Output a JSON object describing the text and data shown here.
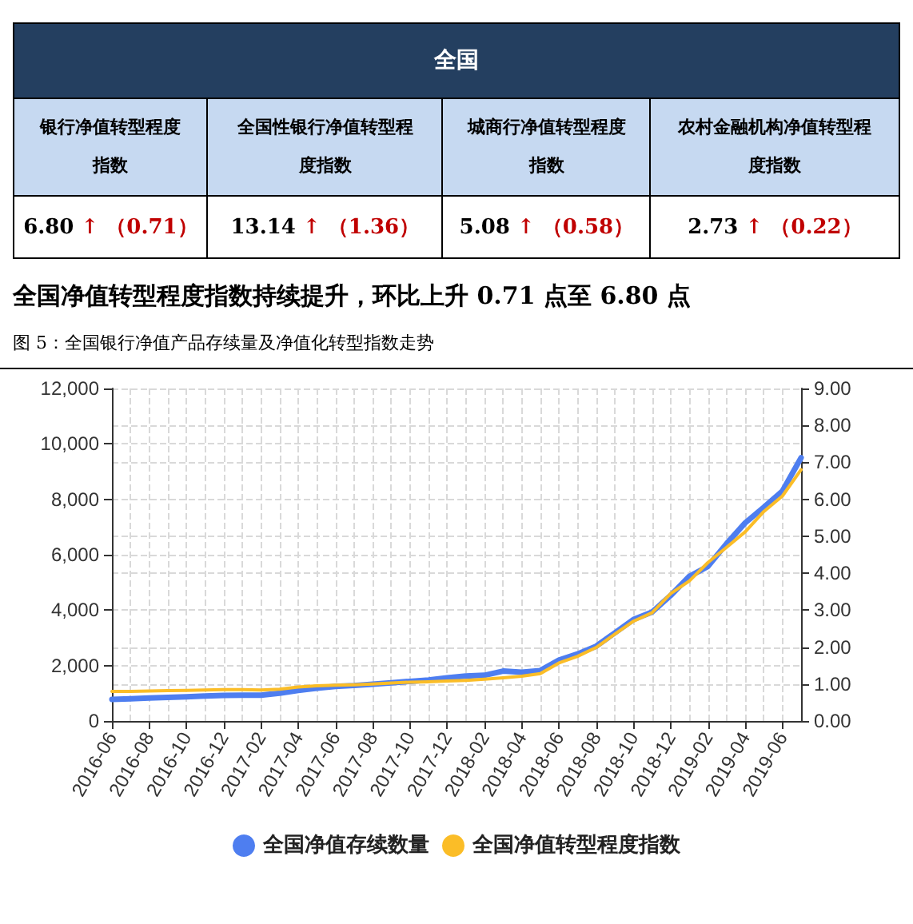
{
  "chart_data": [
    {
      "type": "other",
      "title": "全国",
      "annotations": [
        "银行净值转型程度指数",
        "全国性银行净值转型程度指数",
        "城商行净值转型程度指数",
        "农村金融机构净值转型程度指数",
        "6.80 ↑ （0.71）",
        "13.14 ↑ （1.36）",
        "5.08 ↑ （0.58）",
        "2.73 ↑ （0.22）"
      ]
    },
    {
      "type": "line",
      "title": "全国净值转型程度指数持续提升，环比上升 0.71 点至 6.80 点",
      "subtitle": "图 5：全国银行净值产品存续量及净值化转型指数走势",
      "categories": [
        "2016-06",
        null,
        "2016-08",
        null,
        "2016-10",
        null,
        "2016-12",
        null,
        "2017-02",
        null,
        "2017-04",
        null,
        "2017-06",
        null,
        "2017-08",
        null,
        "2017-10",
        null,
        "2017-12",
        null,
        "2018-02",
        null,
        "2018-04",
        null,
        "2018-06",
        null,
        "2018-08",
        null,
        "2018-10",
        null,
        "2018-12",
        null,
        "2019-02",
        null,
        "2019-04",
        null,
        "2019-06",
        null
      ],
      "series": [
        {
          "name": "全国净值存续数量",
          "color": "#4e7ef0",
          "values": [
            780,
            800,
            830,
            850,
            870,
            900,
            920,
            930,
            930,
            1000,
            1100,
            1180,
            1250,
            1280,
            1330,
            1380,
            1430,
            1480,
            1560,
            1620,
            1650,
            1800,
            1760,
            1820,
            2200,
            2420,
            2700,
            3180,
            3660,
            3930,
            4530,
            5220,
            5580,
            6400,
            7150,
            7710,
            8300,
            9500
          ]
        },
        {
          "name": "全国净值转型程度指数",
          "color": "#fbbd27",
          "axis": "y2",
          "values": [
            0.8,
            0.8,
            0.81,
            0.82,
            0.83,
            0.84,
            0.85,
            0.85,
            0.84,
            0.86,
            0.92,
            0.95,
            0.97,
            0.98,
            1.0,
            1.03,
            1.05,
            1.06,
            1.08,
            1.1,
            1.13,
            1.17,
            1.21,
            1.28,
            1.57,
            1.75,
            1.99,
            2.35,
            2.7,
            2.93,
            3.45,
            3.79,
            4.29,
            4.7,
            5.12,
            5.67,
            6.09,
            6.8
          ]
        }
      ],
      "ylim": [
        0,
        12000
      ],
      "yticks": [
        0,
        {
          "value": 2000,
          "label": "2,000"
        },
        {
          "value": 4000,
          "label": "4,000"
        },
        {
          "value": 6000,
          "label": "6,000"
        },
        {
          "value": 8000,
          "label": "8,000"
        },
        {
          "value": 10000,
          "label": "10,000"
        },
        {
          "value": 12000,
          "label": "12,000"
        }
      ],
      "y2lim": [
        0,
        9
      ],
      "y2ticks": [
        {
          "value": 0,
          "label": "0.00"
        },
        {
          "value": 1,
          "label": "1.00"
        },
        {
          "value": 2,
          "label": "2.00"
        },
        {
          "value": 3,
          "label": "3.00"
        },
        {
          "value": 4,
          "label": "4.00"
        },
        {
          "value": 5,
          "label": "5.00"
        },
        {
          "value": 6,
          "label": "6.00"
        },
        {
          "value": 7,
          "label": "7.00"
        },
        {
          "value": 8,
          "label": "8.00"
        },
        {
          "value": 9,
          "label": "9.00"
        }
      ],
      "grid": true,
      "legend": "bottom",
      "marker": "none",
      "line_style": "solid"
    }
  ]
}
